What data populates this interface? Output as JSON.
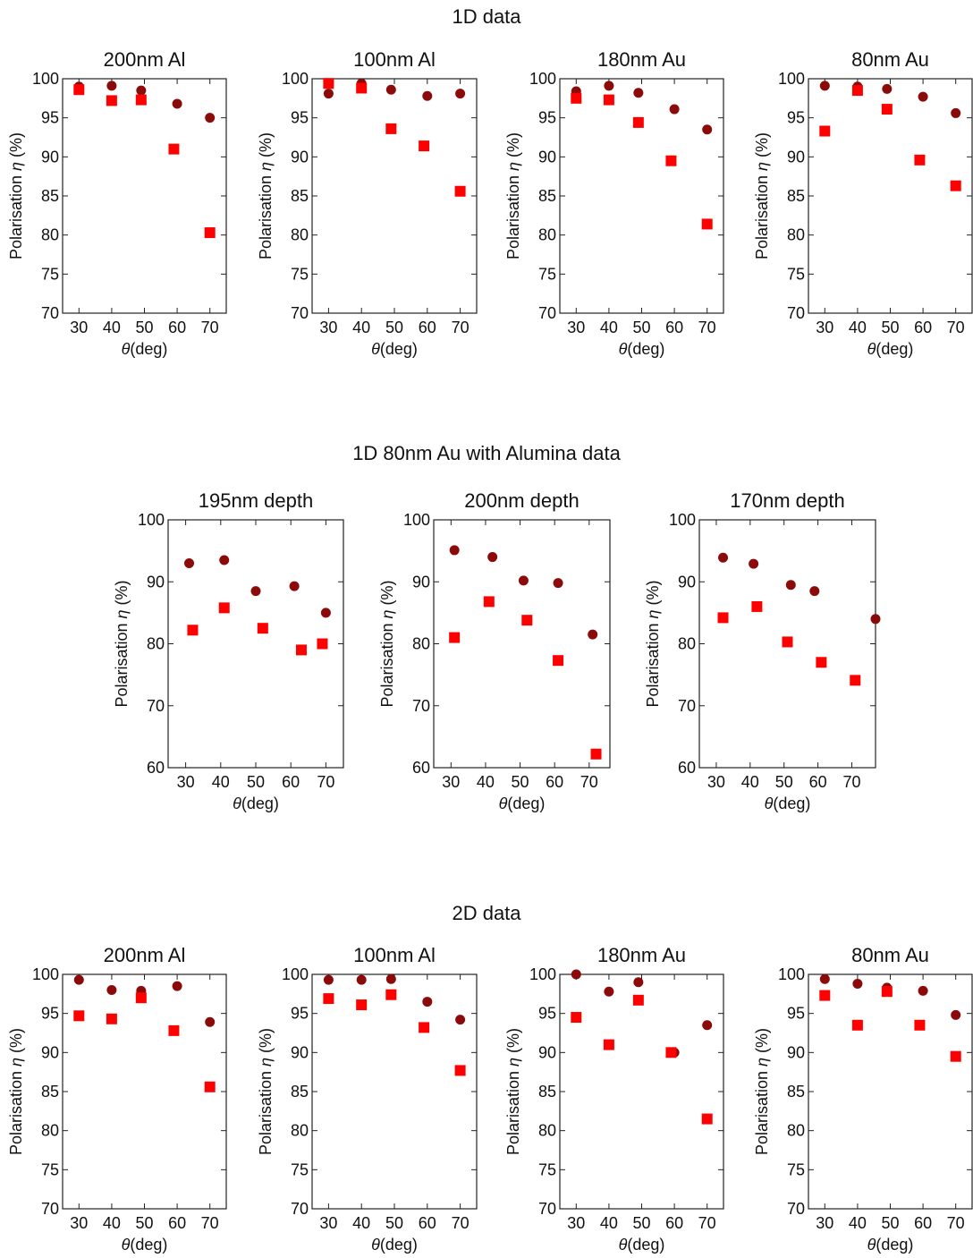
{
  "colors": {
    "circle_series": "#8b0a0a",
    "square_series": "#ff0000",
    "frame": "#222222"
  },
  "sections": [
    {
      "title": "1D data"
    },
    {
      "title": "1D 80nm Au with Alumina data"
    },
    {
      "title": "2D data"
    }
  ],
  "chart_data": [
    {
      "type": "scatter",
      "section": "1D data",
      "title": "200nm Al",
      "xlabel_symbol": "θ",
      "xlabel_rest": "(deg)",
      "ylabel_text": "Polarisation ",
      "ylabel_symbol": "η",
      "ylabel_unit": " (%)",
      "xlim": [
        25,
        75
      ],
      "ylim": [
        70,
        100
      ],
      "xticks": [
        30,
        40,
        50,
        60,
        70
      ],
      "yticks": [
        70,
        75,
        80,
        85,
        90,
        95,
        100
      ],
      "series": [
        {
          "marker": "circle",
          "points": [
            [
              30,
              99.0
            ],
            [
              40,
              99.1
            ],
            [
              49,
              98.5
            ],
            [
              60,
              96.8
            ],
            [
              70,
              95.0
            ]
          ]
        },
        {
          "marker": "square",
          "points": [
            [
              30,
              98.6
            ],
            [
              40,
              97.2
            ],
            [
              49,
              97.3
            ],
            [
              59,
              91.0
            ],
            [
              70,
              80.3
            ]
          ]
        }
      ]
    },
    {
      "type": "scatter",
      "section": "1D data",
      "title": "100nm Al",
      "xlabel_symbol": "θ",
      "xlabel_rest": "(deg)",
      "ylabel_text": "Polarisation ",
      "ylabel_symbol": "η",
      "ylabel_unit": " (%)",
      "xlim": [
        25,
        75
      ],
      "ylim": [
        70,
        100
      ],
      "xticks": [
        30,
        40,
        50,
        60,
        70
      ],
      "yticks": [
        70,
        75,
        80,
        85,
        90,
        95,
        100
      ],
      "series": [
        {
          "marker": "circle",
          "points": [
            [
              30,
              98.1
            ],
            [
              40,
              99.4
            ],
            [
              49,
              98.6
            ],
            [
              60,
              97.8
            ],
            [
              70,
              98.1
            ]
          ]
        },
        {
          "marker": "square",
          "points": [
            [
              30,
              99.4
            ],
            [
              40,
              98.8
            ],
            [
              49,
              93.6
            ],
            [
              59,
              91.4
            ],
            [
              70,
              85.6
            ]
          ]
        }
      ]
    },
    {
      "type": "scatter",
      "section": "1D data",
      "title": "180nm Au",
      "xlabel_symbol": "θ",
      "xlabel_rest": "(deg)",
      "ylabel_text": "Polarisation ",
      "ylabel_symbol": "η",
      "ylabel_unit": " (%)",
      "xlim": [
        25,
        75
      ],
      "ylim": [
        70,
        100
      ],
      "xticks": [
        30,
        40,
        50,
        60,
        70
      ],
      "yticks": [
        70,
        75,
        80,
        85,
        90,
        95,
        100
      ],
      "series": [
        {
          "marker": "circle",
          "points": [
            [
              30,
              98.4
            ],
            [
              40,
              99.1
            ],
            [
              49,
              98.2
            ],
            [
              60,
              96.1
            ],
            [
              70,
              93.5
            ]
          ]
        },
        {
          "marker": "square",
          "points": [
            [
              30,
              97.5
            ],
            [
              40,
              97.3
            ],
            [
              49,
              94.4
            ],
            [
              59,
              89.5
            ],
            [
              70,
              81.4
            ]
          ]
        }
      ]
    },
    {
      "type": "scatter",
      "section": "1D data",
      "title": "80nm Au",
      "xlabel_symbol": "θ",
      "xlabel_rest": "(deg)",
      "ylabel_text": "Polarisation ",
      "ylabel_symbol": "η",
      "ylabel_unit": " (%)",
      "xlim": [
        25,
        75
      ],
      "ylim": [
        70,
        100
      ],
      "xticks": [
        30,
        40,
        50,
        60,
        70
      ],
      "yticks": [
        70,
        75,
        80,
        85,
        90,
        95,
        100
      ],
      "series": [
        {
          "marker": "circle",
          "points": [
            [
              30,
              99.1
            ],
            [
              40,
              99.0
            ],
            [
              49,
              98.7
            ],
            [
              60,
              97.7
            ],
            [
              70,
              95.6
            ]
          ]
        },
        {
          "marker": "square",
          "points": [
            [
              30,
              93.3
            ],
            [
              40,
              98.5
            ],
            [
              49,
              96.1
            ],
            [
              59,
              89.6
            ],
            [
              70,
              86.3
            ]
          ]
        }
      ]
    },
    {
      "type": "scatter",
      "section": "1D 80nm Au with Alumina data",
      "title": "195nm depth",
      "xlabel_symbol": "θ",
      "xlabel_rest": "(deg)",
      "ylabel_text": "Polarisation ",
      "ylabel_symbol": "η",
      "ylabel_unit": " (%)",
      "xlim": [
        25,
        75
      ],
      "ylim": [
        60,
        100
      ],
      "xticks": [
        30,
        40,
        50,
        60,
        70
      ],
      "yticks": [
        60,
        70,
        80,
        90,
        100
      ],
      "series": [
        {
          "marker": "circle",
          "points": [
            [
              31,
              93.0
            ],
            [
              41,
              93.5
            ],
            [
              50,
              88.5
            ],
            [
              61,
              89.3
            ],
            [
              70,
              85.0
            ]
          ]
        },
        {
          "marker": "square",
          "points": [
            [
              32,
              82.2
            ],
            [
              41,
              85.8
            ],
            [
              52,
              82.5
            ],
            [
              63,
              79.0
            ],
            [
              69,
              80.0
            ]
          ]
        }
      ]
    },
    {
      "type": "scatter",
      "section": "1D 80nm Au with Alumina data",
      "title": "200nm depth",
      "xlabel_symbol": "θ",
      "xlabel_rest": "(deg)",
      "ylabel_text": "Polarisation ",
      "ylabel_symbol": "η",
      "ylabel_unit": " (%)",
      "xlim": [
        25,
        76
      ],
      "ylim": [
        60,
        100
      ],
      "xticks": [
        30,
        40,
        50,
        60,
        70
      ],
      "yticks": [
        60,
        70,
        80,
        90,
        100
      ],
      "series": [
        {
          "marker": "circle",
          "points": [
            [
              31,
              95.1
            ],
            [
              42,
              94.0
            ],
            [
              51,
              90.2
            ],
            [
              61,
              89.8
            ],
            [
              71,
              81.5
            ]
          ]
        },
        {
          "marker": "square",
          "points": [
            [
              31,
              81.0
            ],
            [
              41,
              86.8
            ],
            [
              52,
              83.8
            ],
            [
              61,
              77.3
            ],
            [
              72,
              62.2
            ]
          ]
        }
      ]
    },
    {
      "type": "scatter",
      "section": "1D 80nm Au with Alumina data",
      "title": "170nm depth",
      "xlabel_symbol": "θ",
      "xlabel_rest": "(deg)",
      "ylabel_text": "Polarisation ",
      "ylabel_symbol": "η",
      "ylabel_unit": " (%)",
      "xlim": [
        25,
        77
      ],
      "ylim": [
        60,
        100
      ],
      "xticks": [
        30,
        40,
        50,
        60,
        70
      ],
      "yticks": [
        60,
        70,
        80,
        90,
        100
      ],
      "series": [
        {
          "marker": "circle",
          "points": [
            [
              32,
              93.9
            ],
            [
              41,
              92.9
            ],
            [
              52,
              89.5
            ],
            [
              59,
              88.5
            ],
            [
              77,
              84.0
            ]
          ]
        },
        {
          "marker": "square",
          "points": [
            [
              32,
              84.2
            ],
            [
              42,
              86.0
            ],
            [
              51,
              80.3
            ],
            [
              61,
              77.0
            ],
            [
              71,
              74.1
            ]
          ]
        }
      ]
    },
    {
      "type": "scatter",
      "section": "2D data",
      "title": "200nm Al",
      "xlabel_symbol": "θ",
      "xlabel_rest": "(deg)",
      "ylabel_text": "Polarisation ",
      "ylabel_symbol": "η",
      "ylabel_unit": " (%)",
      "xlim": [
        25,
        75
      ],
      "ylim": [
        70,
        100
      ],
      "xticks": [
        30,
        40,
        50,
        60,
        70
      ],
      "yticks": [
        70,
        75,
        80,
        85,
        90,
        95,
        100
      ],
      "series": [
        {
          "marker": "circle",
          "points": [
            [
              30,
              99.3
            ],
            [
              40,
              98.0
            ],
            [
              49,
              97.9
            ],
            [
              60,
              98.5
            ],
            [
              70,
              93.9
            ]
          ]
        },
        {
          "marker": "square",
          "points": [
            [
              30,
              94.7
            ],
            [
              40,
              94.3
            ],
            [
              49,
              97.0
            ],
            [
              59,
              92.8
            ],
            [
              70,
              85.6
            ]
          ]
        }
      ]
    },
    {
      "type": "scatter",
      "section": "2D data",
      "title": "100nm Al",
      "xlabel_symbol": "θ",
      "xlabel_rest": "(deg)",
      "ylabel_text": "Polarisation ",
      "ylabel_symbol": "η",
      "ylabel_unit": " (%)",
      "xlim": [
        25,
        75
      ],
      "ylim": [
        70,
        100
      ],
      "xticks": [
        30,
        40,
        50,
        60,
        70
      ],
      "yticks": [
        70,
        75,
        80,
        85,
        90,
        95,
        100
      ],
      "series": [
        {
          "marker": "circle",
          "points": [
            [
              30,
              99.3
            ],
            [
              40,
              99.3
            ],
            [
              49,
              99.4
            ],
            [
              60,
              96.5
            ],
            [
              70,
              94.2
            ]
          ]
        },
        {
          "marker": "square",
          "points": [
            [
              30,
              96.9
            ],
            [
              40,
              96.1
            ],
            [
              49,
              97.4
            ],
            [
              59,
              93.2
            ],
            [
              70,
              87.7
            ]
          ]
        }
      ]
    },
    {
      "type": "scatter",
      "section": "2D data",
      "title": "180nm Au",
      "xlabel_symbol": "θ",
      "xlabel_rest": "(deg)",
      "ylabel_text": "Polarisation ",
      "ylabel_symbol": "η",
      "ylabel_unit": " (%)",
      "xlim": [
        25,
        75
      ],
      "ylim": [
        70,
        100
      ],
      "xticks": [
        30,
        40,
        50,
        60,
        70
      ],
      "yticks": [
        70,
        75,
        80,
        85,
        90,
        95,
        100
      ],
      "series": [
        {
          "marker": "circle",
          "points": [
            [
              30,
              100.0
            ],
            [
              40,
              97.8
            ],
            [
              49,
              99.0
            ],
            [
              60,
              90.0
            ],
            [
              70,
              93.5
            ]
          ]
        },
        {
          "marker": "square",
          "points": [
            [
              30,
              94.5
            ],
            [
              40,
              91.0
            ],
            [
              49,
              96.7
            ],
            [
              59,
              90.0
            ],
            [
              70,
              81.5
            ]
          ]
        }
      ]
    },
    {
      "type": "scatter",
      "section": "2D data",
      "title": "80nm Au",
      "xlabel_symbol": "θ",
      "xlabel_rest": "(deg)",
      "ylabel_text": "Polarisation ",
      "ylabel_symbol": "η",
      "ylabel_unit": " (%)",
      "xlim": [
        25,
        75
      ],
      "ylim": [
        70,
        100
      ],
      "xticks": [
        30,
        40,
        50,
        60,
        70
      ],
      "yticks": [
        70,
        75,
        80,
        85,
        90,
        95,
        100
      ],
      "series": [
        {
          "marker": "circle",
          "points": [
            [
              30,
              99.4
            ],
            [
              40,
              98.8
            ],
            [
              49,
              98.3
            ],
            [
              60,
              97.9
            ],
            [
              70,
              94.8
            ]
          ]
        },
        {
          "marker": "square",
          "points": [
            [
              30,
              97.3
            ],
            [
              40,
              93.5
            ],
            [
              49,
              97.8
            ],
            [
              59,
              93.5
            ],
            [
              70,
              89.5
            ]
          ]
        }
      ]
    }
  ]
}
